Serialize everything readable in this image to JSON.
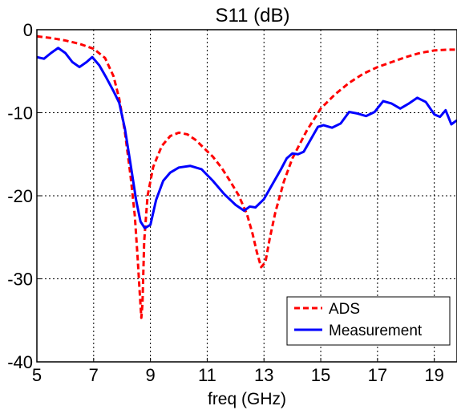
{
  "chart_data": {
    "type": "line",
    "title": "S11 (dB)",
    "xlabel": "freq (GHz)",
    "ylabel": "",
    "xlim": [
      5,
      19.8
    ],
    "ylim": [
      -40,
      0
    ],
    "xticks": [
      5,
      7,
      9,
      11,
      13,
      15,
      17,
      19
    ],
    "yticks": [
      0,
      -10,
      -20,
      -30,
      -40
    ],
    "grid": true,
    "legend_position": "bottom-right",
    "series": [
      {
        "name": "ADS",
        "color": "#ff0000",
        "style": "dashed",
        "x": [
          5.0,
          5.5,
          6.0,
          6.5,
          7.0,
          7.4,
          7.7,
          7.9,
          8.1,
          8.3,
          8.45,
          8.55,
          8.62,
          8.68,
          8.72,
          8.78,
          8.9,
          9.1,
          9.4,
          9.7,
          10.0,
          10.3,
          10.6,
          10.9,
          11.2,
          11.5,
          11.8,
          12.1,
          12.4,
          12.6,
          12.75,
          12.9,
          13.05,
          13.2,
          13.4,
          13.7,
          14.0,
          14.5,
          15.0,
          15.5,
          16.0,
          16.5,
          17.0,
          17.5,
          18.0,
          18.5,
          19.0,
          19.5,
          19.8
        ],
        "y": [
          -0.8,
          -1.0,
          -1.3,
          -1.7,
          -2.3,
          -3.4,
          -5.6,
          -8.3,
          -12.3,
          -17.6,
          -22.4,
          -27.5,
          -31.5,
          -34.7,
          -33.0,
          -25.5,
          -20.0,
          -16.5,
          -14.0,
          -12.8,
          -12.4,
          -12.6,
          -13.3,
          -14.3,
          -15.3,
          -16.6,
          -18.2,
          -19.9,
          -22.2,
          -24.6,
          -26.8,
          -28.6,
          -28.0,
          -25.2,
          -22.0,
          -18.3,
          -15.5,
          -12.2,
          -9.5,
          -7.8,
          -6.4,
          -5.3,
          -4.5,
          -3.9,
          -3.3,
          -2.8,
          -2.5,
          -2.4,
          -2.4
        ]
      },
      {
        "name": "Measurement",
        "color": "#0000ff",
        "style": "solid",
        "x": [
          5.0,
          5.25,
          5.5,
          5.75,
          6.0,
          6.25,
          6.5,
          6.75,
          6.95,
          7.2,
          7.45,
          7.7,
          7.9,
          8.1,
          8.3,
          8.5,
          8.65,
          8.8,
          9.0,
          9.2,
          9.45,
          9.7,
          10.0,
          10.4,
          10.8,
          11.2,
          11.6,
          12.0,
          12.3,
          12.5,
          12.7,
          13.0,
          13.3,
          13.6,
          13.8,
          14.0,
          14.2,
          14.4,
          14.6,
          14.9,
          15.1,
          15.4,
          15.7,
          16.0,
          16.3,
          16.6,
          16.9,
          17.2,
          17.5,
          17.8,
          18.1,
          18.4,
          18.7,
          19.0,
          19.2,
          19.4,
          19.6,
          19.8
        ],
        "y": [
          -3.3,
          -3.5,
          -2.8,
          -2.2,
          -2.8,
          -3.9,
          -4.5,
          -3.9,
          -3.3,
          -4.3,
          -5.8,
          -7.4,
          -8.8,
          -11.9,
          -16.2,
          -20.6,
          -23.1,
          -23.9,
          -23.5,
          -20.5,
          -18.2,
          -17.2,
          -16.6,
          -16.4,
          -16.8,
          -18.2,
          -19.8,
          -21.1,
          -21.8,
          -21.3,
          -21.4,
          -20.4,
          -18.6,
          -16.8,
          -15.5,
          -14.9,
          -15.0,
          -14.7,
          -13.5,
          -11.7,
          -11.5,
          -11.8,
          -11.3,
          -9.9,
          -10.1,
          -10.4,
          -9.9,
          -8.6,
          -8.9,
          -9.5,
          -8.9,
          -8.2,
          -8.7,
          -10.2,
          -10.5,
          -9.7,
          -11.4,
          -10.9
        ]
      }
    ]
  }
}
